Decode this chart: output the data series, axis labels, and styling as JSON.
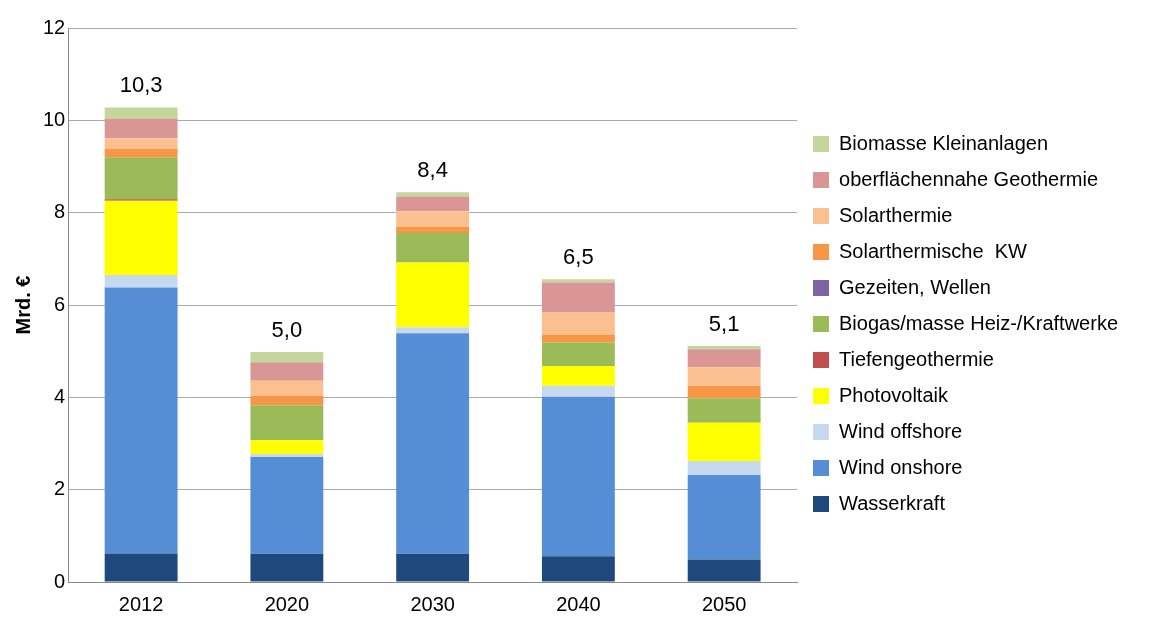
{
  "chart_data": {
    "type": "bar",
    "stacked": true,
    "ylabel": "Mrd. €",
    "categories": [
      "2012",
      "2020",
      "2030",
      "2040",
      "2050"
    ],
    "series": [
      {
        "name": "Wasserkraft",
        "color": "#1f497d",
        "values": [
          0.62,
          0.61,
          0.61,
          0.56,
          0.49
        ]
      },
      {
        "name": "Wind onshore",
        "color": "#558ed5",
        "values": [
          5.76,
          2.1,
          4.78,
          3.45,
          1.83
        ]
      },
      {
        "name": "Wind offshore",
        "color": "#c6d9f1",
        "values": [
          0.27,
          0.06,
          0.13,
          0.24,
          0.3
        ]
      },
      {
        "name": "Photovoltaik",
        "color": "#ffff00",
        "values": [
          1.61,
          0.3,
          1.4,
          0.43,
          0.83
        ]
      },
      {
        "name": "Tiefengeothermie",
        "color": "#c0504d",
        "values": [
          0.03,
          0,
          0,
          0,
          0
        ]
      },
      {
        "name": "Biogas/masse Heiz-/Kraftwerke",
        "color": "#9bbb59",
        "values": [
          0.91,
          0.76,
          0.64,
          0.51,
          0.53
        ]
      },
      {
        "name": "Gezeiten, Wellen",
        "color": "#8064a2",
        "values": [
          0,
          0,
          0,
          0,
          0
        ]
      },
      {
        "name": "Solarthermische  KW",
        "color": "#f79646",
        "values": [
          0.18,
          0.2,
          0.13,
          0.17,
          0.27
        ]
      },
      {
        "name": "Solarthermie",
        "color": "#fac090",
        "values": [
          0.23,
          0.33,
          0.34,
          0.48,
          0.4
        ]
      },
      {
        "name": "oberflächennahe Geothermie",
        "color": "#d99694",
        "values": [
          0.43,
          0.4,
          0.32,
          0.65,
          0.39
        ]
      },
      {
        "name": "Biomasse Kleinanlagen",
        "color": "#c3d69b",
        "values": [
          0.24,
          0.22,
          0.09,
          0.07,
          0.07
        ]
      }
    ],
    "totals": [
      "10,3",
      "5,0",
      "8,4",
      "6,5",
      "5,1"
    ],
    "ylim": [
      0,
      12
    ],
    "yticks": [
      0,
      2,
      4,
      6,
      8,
      10,
      12
    ],
    "grid": "y",
    "legend": "right"
  }
}
